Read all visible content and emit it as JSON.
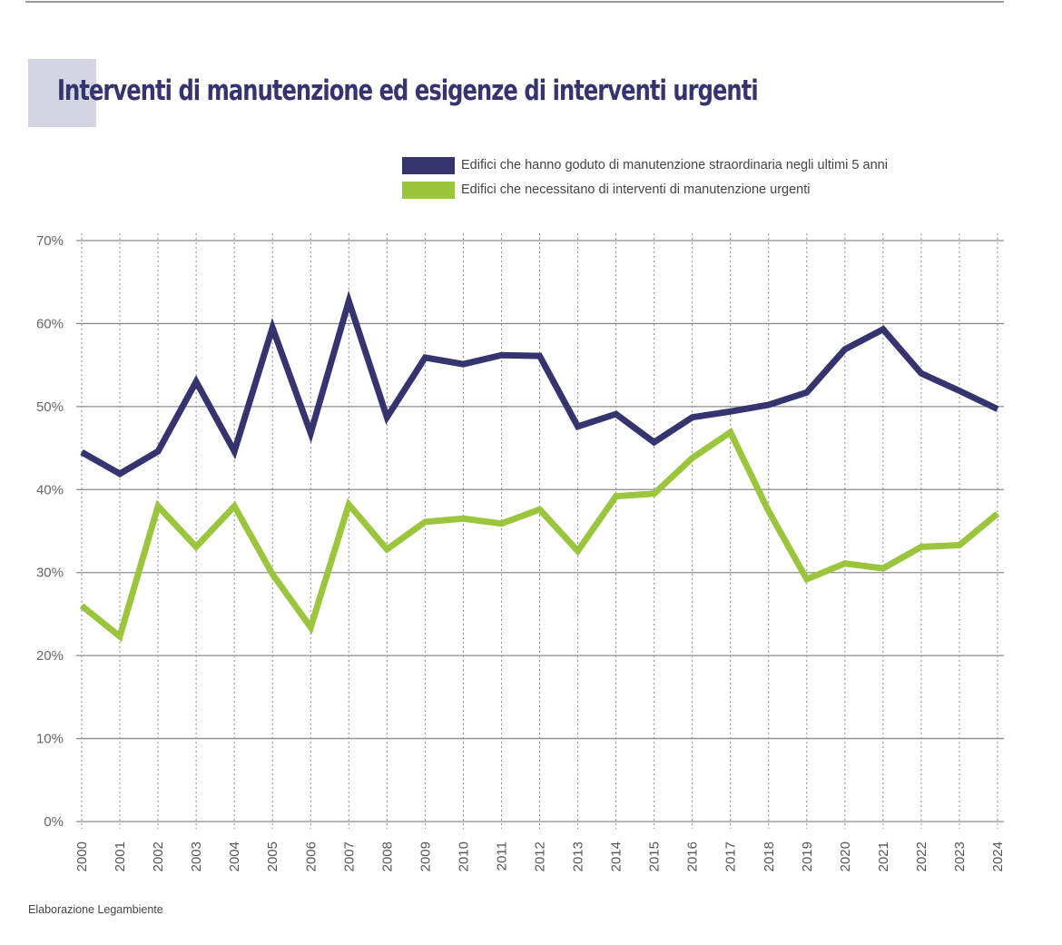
{
  "title": "Interventi di manutenzione ed esigenze di interventi urgenti",
  "source": "Elaborazione Legambiente",
  "chart_data": {
    "type": "line",
    "title": "Interventi di manutenzione ed esigenze di interventi urgenti",
    "xlabel": "",
    "ylabel": "",
    "x": [
      "2000",
      "2001",
      "2002",
      "2003",
      "2004",
      "2005",
      "2006",
      "2007",
      "2008",
      "2009",
      "2010",
      "2011",
      "2012",
      "2013",
      "2014",
      "2015",
      "2016",
      "2017",
      "2018",
      "2019",
      "2020",
      "2021",
      "2022",
      "2023",
      "2024"
    ],
    "ylim": [
      0,
      70
    ],
    "yticks": [
      0,
      10,
      20,
      30,
      40,
      50,
      60,
      70
    ],
    "ytick_labels": [
      "0%",
      "10%",
      "20%",
      "30%",
      "40%",
      "50%",
      "60%",
      "70%"
    ],
    "grid": {
      "horizontal": "solid",
      "vertical": "dotted"
    },
    "legend_position": "top-right",
    "series": [
      {
        "name": "Edifici che hanno goduto di manutenzione straordinaria negli ultimi 5 anni",
        "color": "#36346f",
        "values": [
          44.5,
          41.9,
          44.6,
          53.0,
          44.6,
          59.5,
          46.8,
          62.7,
          48.7,
          55.9,
          55.1,
          56.2,
          56.1,
          47.6,
          49.1,
          45.7,
          48.7,
          49.4,
          50.2,
          51.7,
          56.9,
          59.3,
          54.0,
          51.9,
          49.7
        ]
      },
      {
        "name": "Edifici che necessitano di interventi di manutenzione urgenti",
        "color": "#9bc53d",
        "values": [
          26.0,
          22.3,
          38.0,
          33.1,
          38.0,
          29.8,
          23.4,
          38.2,
          32.8,
          36.1,
          36.5,
          35.9,
          37.6,
          32.6,
          39.2,
          39.5,
          43.8,
          46.9,
          37.4,
          29.2,
          31.1,
          30.5,
          33.1,
          33.3,
          37.1
        ]
      }
    ]
  }
}
